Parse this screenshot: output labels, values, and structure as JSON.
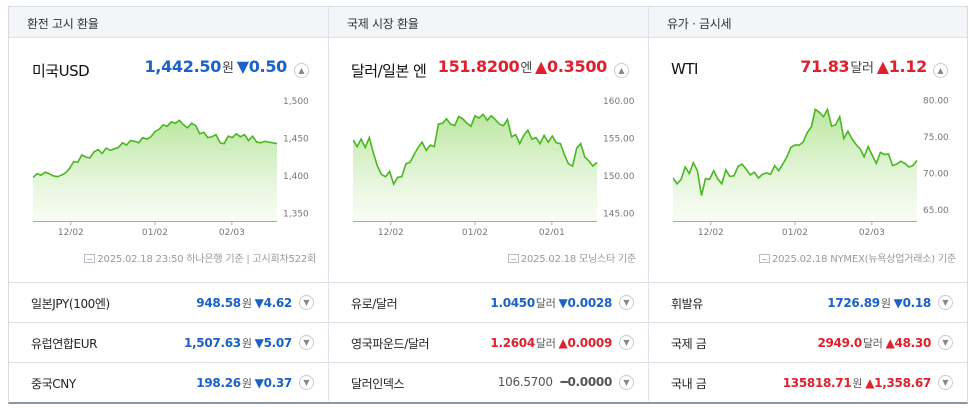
{
  "sections": [
    {
      "title": "환전 고시 환율"
    },
    {
      "title": "국제 시장 환율"
    },
    {
      "title": "유가 · 금시세"
    }
  ],
  "main": [
    {
      "name": "미국USD",
      "value": "1,442.50",
      "unit": "원",
      "direction": "down",
      "arrow": "▼",
      "change": "0.50",
      "source": "2025.02.18 23:50 하나은행 기준 | 고시회차522회"
    },
    {
      "name": "달러/일본 엔",
      "value": "151.8200",
      "unit": "엔",
      "direction": "up",
      "arrow": "▲",
      "change": "0.3500",
      "source": "2025.02.18 모닝스타 기준"
    },
    {
      "name": "WTI",
      "value": "71.83",
      "unit": "달러",
      "direction": "up",
      "arrow": "▲",
      "change": "1.12",
      "source": "2025.02.18 NYMEX(뉴욕상업거래소) 기준"
    }
  ],
  "rows": [
    [
      {
        "name": "일본JPY(100엔)",
        "value": "948.58",
        "unit": "원",
        "direction": "down",
        "arrow": "▼",
        "change": "4.62"
      },
      {
        "name": "유럽연합EUR",
        "value": "1,507.63",
        "unit": "원",
        "direction": "down",
        "arrow": "▼",
        "change": "5.07"
      },
      {
        "name": "중국CNY",
        "value": "198.26",
        "unit": "원",
        "direction": "down",
        "arrow": "▼",
        "change": "0.37"
      }
    ],
    [
      {
        "name": "유로/달러",
        "value": "1.0450",
        "unit": "달러",
        "direction": "down",
        "arrow": "▼",
        "change": "0.0028"
      },
      {
        "name": "영국파운드/달러",
        "value": "1.2604",
        "unit": "달러",
        "direction": "up",
        "arrow": "▲",
        "change": "0.0009"
      },
      {
        "name": "달러인덱스",
        "value": "106.5700",
        "unit": "",
        "direction": "flat",
        "arrow": "━",
        "change": "0.0000"
      }
    ],
    [
      {
        "name": "휘발유",
        "value": "1726.89",
        "unit": "원",
        "direction": "down",
        "arrow": "▼",
        "change": "0.18"
      },
      {
        "name": "국제 금",
        "value": "2949.0",
        "unit": "달러",
        "direction": "up",
        "arrow": "▲",
        "change": "48.30"
      },
      {
        "name": "국내 금",
        "value": "135818.71",
        "unit": "원",
        "direction": "up",
        "arrow": "▲",
        "change": "1,358.67"
      }
    ]
  ],
  "chart_data": [
    {
      "type": "area",
      "x_ticks": [
        "12/02",
        "01/02",
        "02/03"
      ],
      "y_ticks": [
        "1,500",
        "1,450",
        "1,400",
        "1,350"
      ],
      "ylim": [
        1340,
        1505
      ],
      "values": [
        1398,
        1403,
        1401,
        1405,
        1403,
        1400,
        1399,
        1401,
        1404,
        1410,
        1419,
        1418,
        1428,
        1425,
        1424,
        1432,
        1435,
        1430,
        1437,
        1434,
        1436,
        1438,
        1444,
        1441,
        1447,
        1446,
        1444,
        1451,
        1449,
        1452,
        1459,
        1462,
        1468,
        1466,
        1472,
        1470,
        1474,
        1468,
        1464,
        1470,
        1467,
        1456,
        1458,
        1451,
        1452,
        1455,
        1444,
        1443,
        1453,
        1451,
        1456,
        1452,
        1455,
        1447,
        1453,
        1445,
        1444,
        1446,
        1445,
        1444,
        1443
      ],
      "color": "#49b720"
    },
    {
      "type": "area",
      "x_ticks": [
        "12/02",
        "01/02",
        "02/01"
      ],
      "y_ticks": [
        "160.00",
        "155.00",
        "150.00",
        "145.00"
      ],
      "ylim": [
        144,
        160.5
      ],
      "values": [
        154.8,
        153.9,
        154.9,
        153.8,
        155.1,
        153.1,
        151.3,
        150.2,
        149.9,
        150.6,
        148.9,
        149.8,
        149.9,
        151.6,
        151.8,
        152.8,
        153.8,
        154.5,
        153.4,
        154.1,
        153.9,
        156.9,
        157.0,
        157.6,
        156.9,
        156.7,
        157.9,
        157.6,
        157.0,
        156.6,
        158.0,
        157.7,
        158.2,
        157.4,
        158.0,
        157.5,
        156.9,
        156.7,
        157.5,
        155.2,
        155.5,
        154.3,
        155.4,
        156.1,
        154.9,
        155.1,
        154.3,
        155.4,
        154.5,
        155.3,
        154.4,
        154.3,
        152.8,
        151.6,
        151.3,
        153.7,
        154.3,
        152.5,
        152.0,
        151.3,
        151.8
      ],
      "color": "#49b720"
    },
    {
      "type": "area",
      "x_ticks": [
        "12/02",
        "01/02",
        "02/03"
      ],
      "y_ticks": [
        "80.00",
        "75.00",
        "70.00",
        "65.00"
      ],
      "ylim": [
        63.5,
        80.5
      ],
      "values": [
        69.4,
        68.6,
        69.2,
        70.9,
        70.0,
        71.5,
        70.4,
        67.0,
        69.3,
        69.2,
        70.4,
        69.3,
        68.6,
        70.5,
        69.6,
        69.7,
        71.0,
        71.3,
        70.6,
        69.8,
        70.2,
        69.4,
        69.9,
        70.1,
        69.9,
        71.1,
        70.4,
        71.3,
        72.3,
        73.6,
        73.9,
        73.9,
        74.3,
        75.6,
        76.4,
        78.8,
        78.4,
        77.8,
        78.8,
        76.5,
        76.7,
        77.8,
        74.8,
        75.8,
        74.8,
        74.0,
        73.4,
        72.3,
        73.7,
        72.5,
        71.4,
        72.9,
        72.6,
        72.7,
        71.1,
        71.3,
        71.7,
        71.4,
        70.9,
        71.1,
        71.8
      ],
      "color": "#49b720"
    }
  ]
}
